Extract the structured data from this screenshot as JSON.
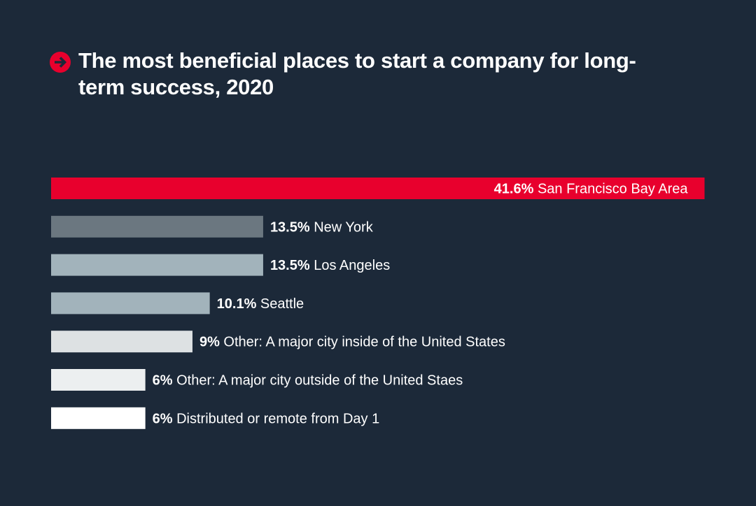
{
  "title": "The most beneficial places to start a company for long-term success, 2020",
  "icon": "arrow-right-circle-icon",
  "colors": {
    "background": "#1c2939",
    "accent": "#e8002d",
    "label": "#ffffff"
  },
  "chart_data": {
    "type": "bar",
    "orientation": "horizontal",
    "title": "The most beneficial places to start a company for long-term success, 2020",
    "categories": [
      "San Francisco Bay Area",
      "New York",
      "Los Angeles",
      "Seattle",
      "Other: A major city inside of the United States",
      "Other: A major city outside of the United Staes",
      "Distributed or remote from Day 1"
    ],
    "values": [
      41.6,
      13.5,
      13.5,
      10.1,
      9,
      6,
      6
    ],
    "value_labels": [
      "41.6%",
      "13.5%",
      "13.5%",
      "10.1%",
      "9%",
      "6%",
      "6%"
    ],
    "bar_colors": [
      "#e8002d",
      "#6b7780",
      "#a2b3bb",
      "#a2b3bb",
      "#dde1e3",
      "#eceff0",
      "#ffffff"
    ],
    "grid": false,
    "legend": "none"
  }
}
